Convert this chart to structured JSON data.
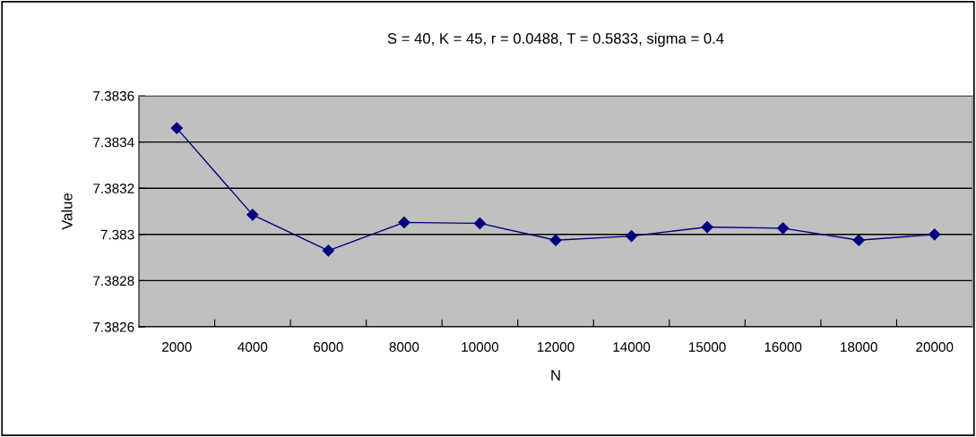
{
  "chart_data": {
    "type": "line",
    "title": "S = 40, K = 45, r = 0.0488, T = 0.5833, sigma = 0.4",
    "xlabel": "N",
    "ylabel": "Value",
    "categories": [
      "2000",
      "4000",
      "6000",
      "8000",
      "10000",
      "12000",
      "14000",
      "15000",
      "16000",
      "18000",
      "20000"
    ],
    "series": [
      {
        "color": "#000080",
        "values": [
          7.38346,
          7.383085,
          7.38293,
          7.383052,
          7.383048,
          7.382975,
          7.382993,
          7.383032,
          7.383027,
          7.382975,
          7.383
        ]
      }
    ],
    "ylim": [
      7.3826,
      7.3836
    ],
    "yticks": [
      7.3826,
      7.3828,
      7.3832,
      {
        "value": 7.383,
        "label": "7.383"
      },
      7.3834,
      7.3836
    ],
    "grid": "y",
    "legend": false,
    "marker": "diamond",
    "line_style": "solid"
  }
}
